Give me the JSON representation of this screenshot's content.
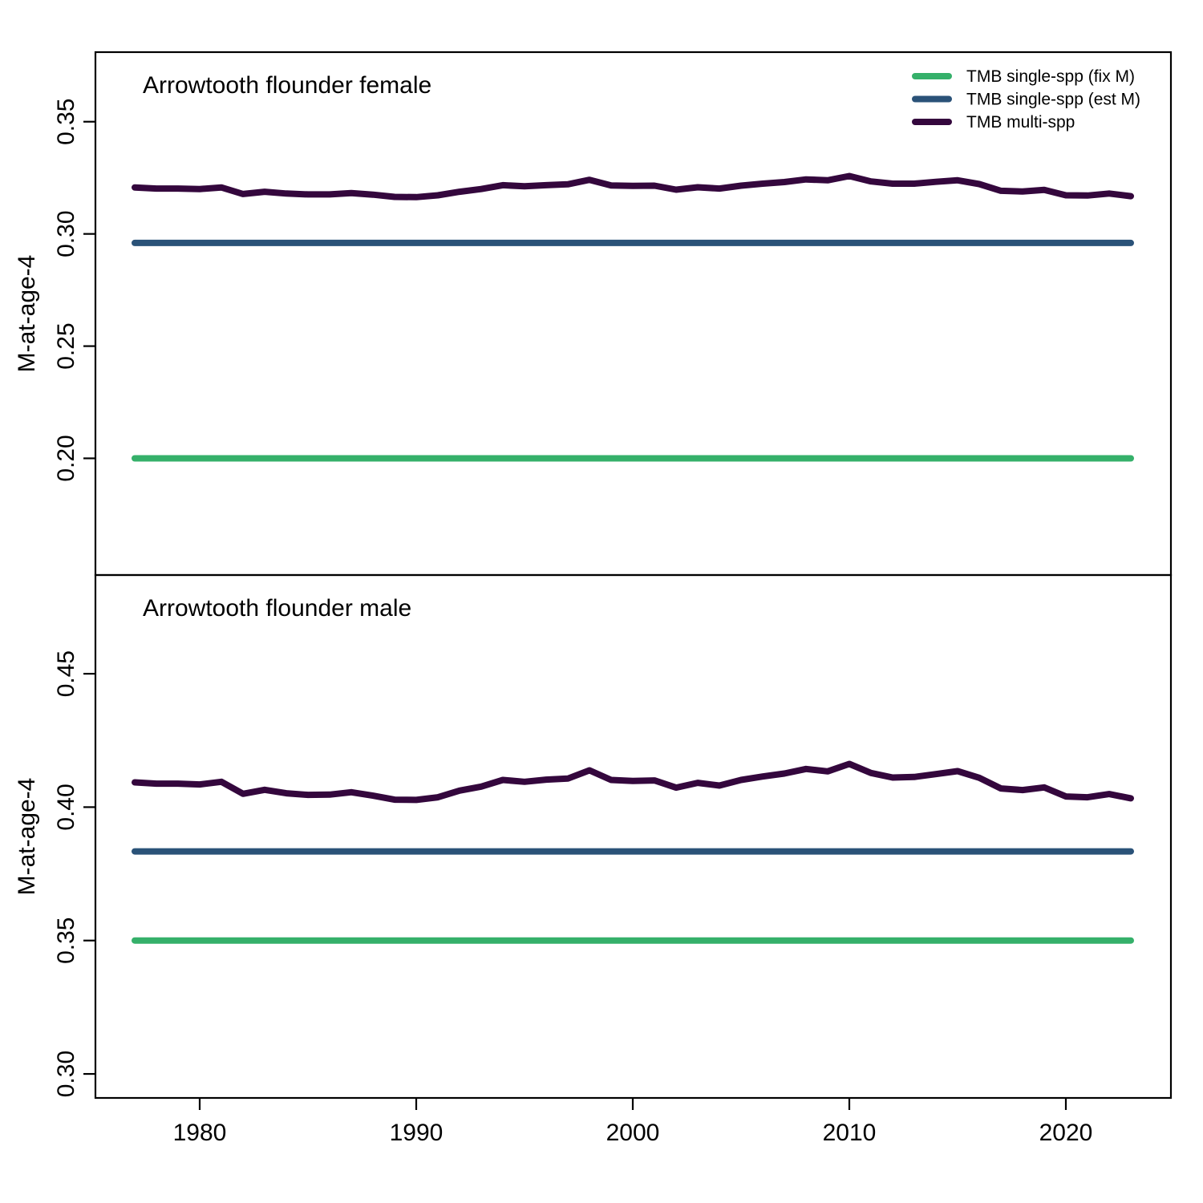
{
  "colors": {
    "fix_m": "#35B06A",
    "est_m": "#2A5278",
    "multi": "#34073D"
  },
  "legend": {
    "placement": "top-right",
    "entries": [
      {
        "label": "TMB single-spp (fix M)",
        "color_key": "fix_m"
      },
      {
        "label": "TMB single-spp (est M)",
        "color_key": "est_m"
      },
      {
        "label": "TMB multi-spp",
        "color_key": "multi"
      }
    ]
  },
  "chart_data": [
    {
      "type": "line",
      "title": "Arrowtooth flounder female",
      "ylabel": "M-at-age-4",
      "xlim": [
        1972.2,
        2022.0
      ],
      "ylim": [
        0.148,
        0.381
      ],
      "xticks": [
        1980,
        1990,
        2000,
        2010,
        2020
      ],
      "yticks": [
        "0.20",
        "0.25",
        "0.30",
        "0.35"
      ],
      "x_start": 1977,
      "x_end": 2023,
      "series": [
        {
          "name": "TMB single-spp (fix M)",
          "color_key": "fix_m",
          "constant": 0.2
        },
        {
          "name": "TMB single-spp (est M)",
          "color_key": "est_m",
          "constant": 0.296
        },
        {
          "name": "TMB multi-spp",
          "color_key": "multi",
          "values": [
            0.3207,
            0.3202,
            0.3202,
            0.32,
            0.3207,
            0.3178,
            0.3188,
            0.318,
            0.3176,
            0.3176,
            0.3182,
            0.3175,
            0.3165,
            0.3164,
            0.3172,
            0.3188,
            0.32,
            0.3217,
            0.3212,
            0.3217,
            0.3221,
            0.3241,
            0.3216,
            0.3214,
            0.3215,
            0.3197,
            0.3208,
            0.3202,
            0.3215,
            0.3224,
            0.3231,
            0.3243,
            0.3239,
            0.3258,
            0.3234,
            0.3224,
            0.3224,
            0.3232,
            0.3239,
            0.3222,
            0.3192,
            0.3189,
            0.3196,
            0.3172,
            0.3171,
            0.318,
            0.3168
          ]
        }
      ]
    },
    {
      "type": "line",
      "title": "Arrowtooth flounder male",
      "ylabel": "M-at-age-4",
      "xlim": [
        1972.2,
        2022.0
      ],
      "ylim": [
        0.291,
        0.487
      ],
      "xticks": [
        1980,
        1990,
        2000,
        2010,
        2020
      ],
      "yticks": [
        "0.30",
        "0.35",
        "0.40",
        "0.45"
      ],
      "x_start": 1977,
      "x_end": 2023,
      "series": [
        {
          "name": "TMB single-spp (fix M)",
          "color_key": "fix_m",
          "constant": 0.35
        },
        {
          "name": "TMB single-spp (est M)",
          "color_key": "est_m",
          "constant": 0.3834
        },
        {
          "name": "TMB multi-spp",
          "color_key": "multi",
          "values": [
            0.4093,
            0.4088,
            0.4088,
            0.4085,
            0.4095,
            0.405,
            0.4065,
            0.4052,
            0.4046,
            0.4047,
            0.4056,
            0.4043,
            0.4028,
            0.4027,
            0.4037,
            0.4062,
            0.4077,
            0.4102,
            0.4095,
            0.4103,
            0.4107,
            0.4138,
            0.4102,
            0.4098,
            0.41,
            0.4073,
            0.4091,
            0.4081,
            0.4102,
            0.4115,
            0.4126,
            0.4143,
            0.4134,
            0.4162,
            0.4128,
            0.4111,
            0.4113,
            0.4124,
            0.4135,
            0.411,
            0.407,
            0.4064,
            0.4074,
            0.404,
            0.4037,
            0.4049,
            0.4033
          ]
        }
      ]
    }
  ]
}
